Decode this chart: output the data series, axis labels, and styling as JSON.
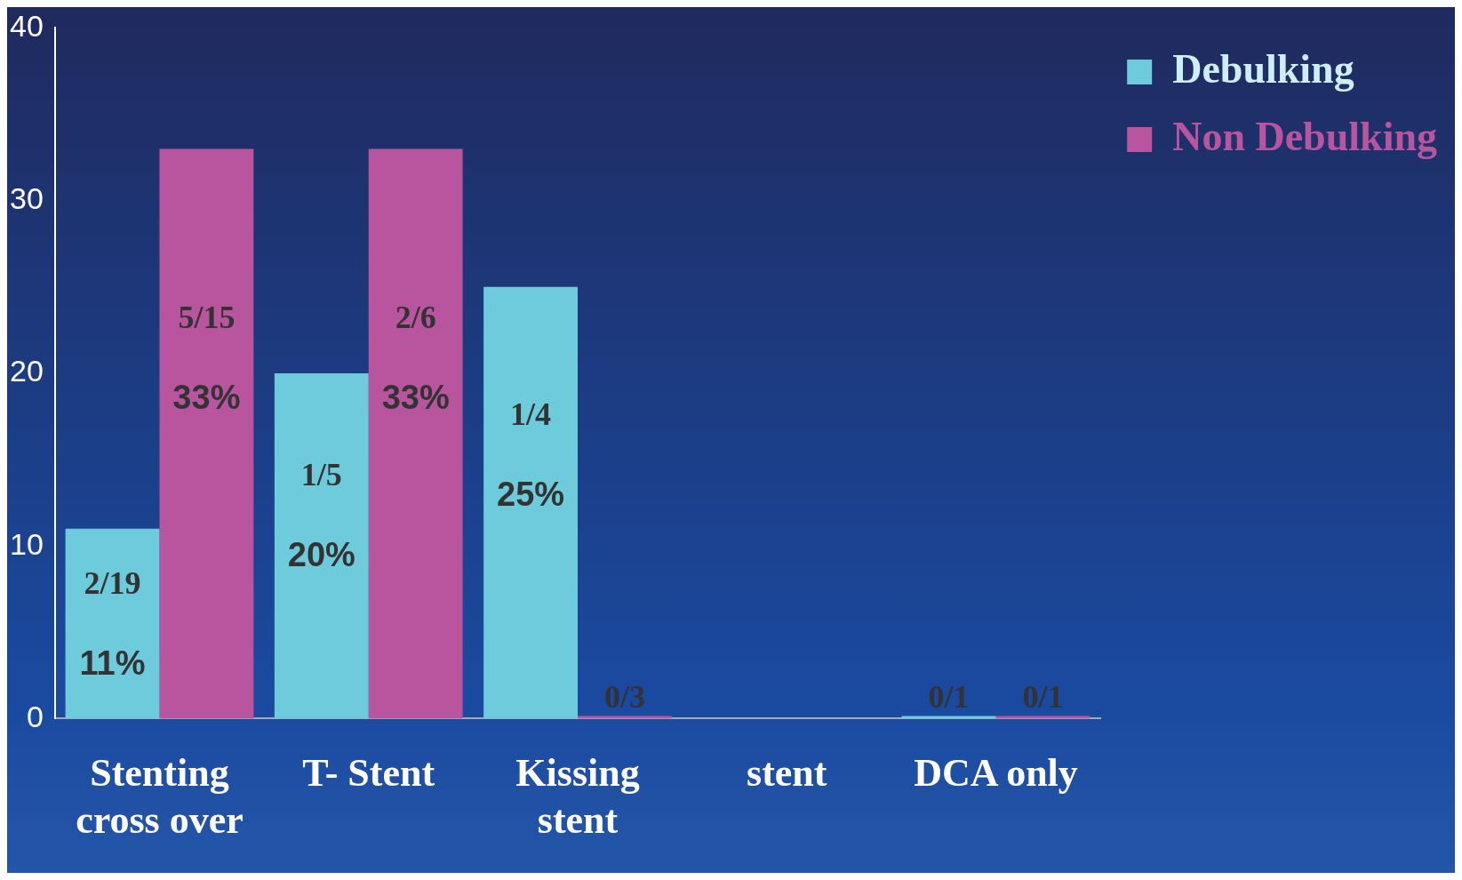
{
  "chart_data": {
    "type": "bar",
    "categories": [
      "Stenting cross over",
      "T- Stent",
      "Kissing stent",
      "stent",
      "DCA only"
    ],
    "series": [
      {
        "name": "Debulking",
        "color": "#6ecbdc",
        "values": [
          11,
          20,
          25,
          null,
          0
        ],
        "value_labels": [
          "2/19\n11%",
          "1/5\n20%",
          "1/4\n25%",
          null,
          "0/1"
        ]
      },
      {
        "name": "Non Debulking",
        "color": "#b9559e",
        "values": [
          33,
          33,
          0,
          null,
          0
        ],
        "value_labels": [
          "5/15\n33%",
          "2/6\n33%",
          "0/3",
          null,
          "0/1"
        ]
      }
    ],
    "ylim": [
      0,
      40
    ],
    "yticks": [
      0,
      10,
      20,
      30,
      40
    ],
    "grid": false,
    "legend": "top right"
  }
}
